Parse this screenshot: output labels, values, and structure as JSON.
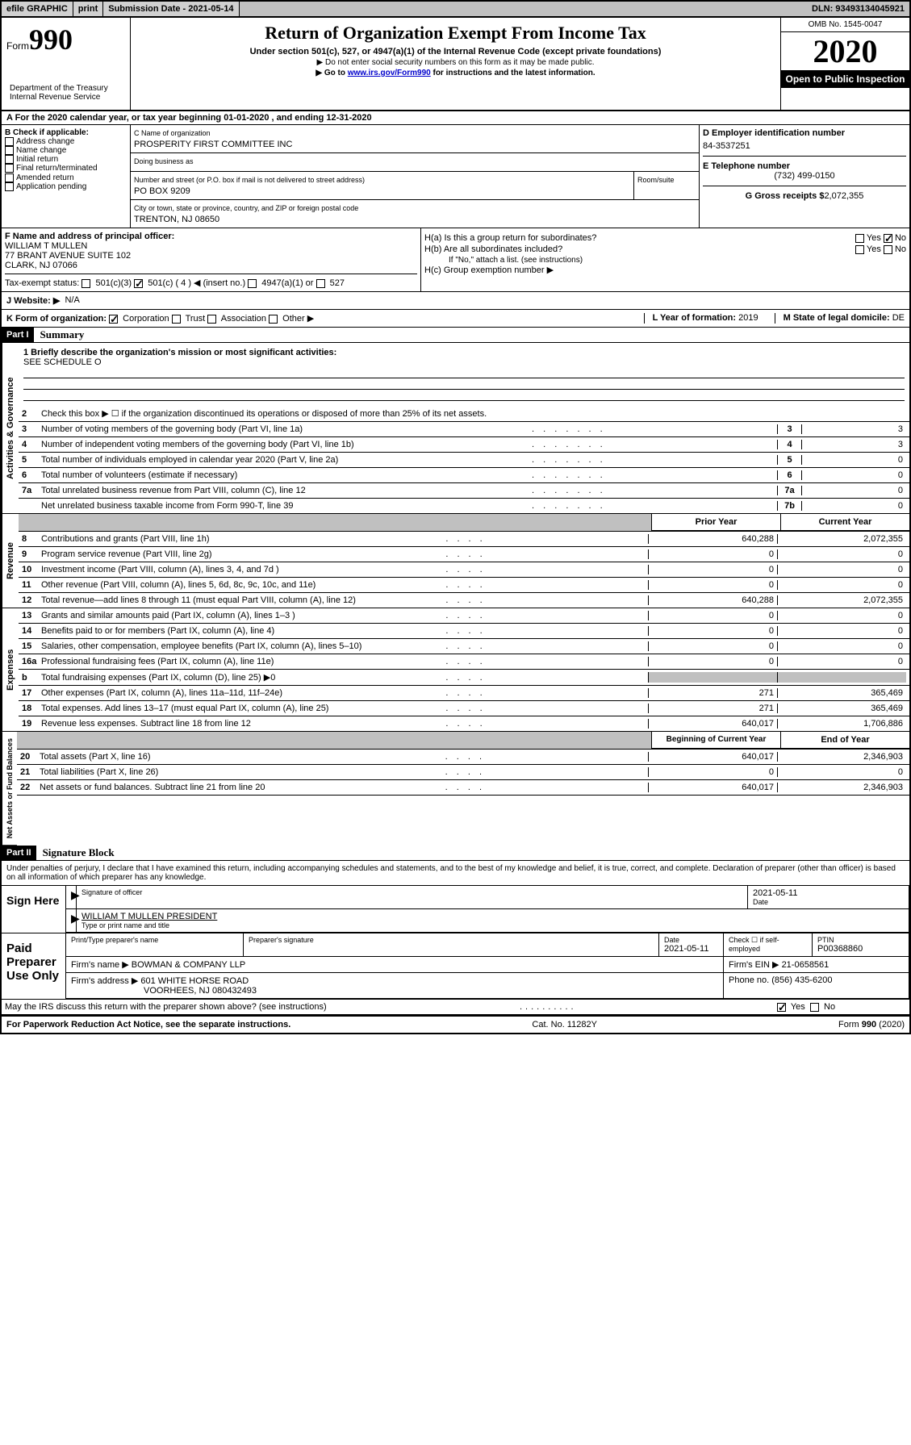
{
  "topbar": {
    "efile": "efile GRAPHIC",
    "print": "print",
    "subdate_label": "Submission Date - ",
    "subdate": "2021-05-14",
    "dln": "DLN: 93493134045921"
  },
  "header": {
    "form_prefix": "Form",
    "form_no": "990",
    "dept": "Department of the Treasury\nInternal Revenue Service",
    "title": "Return of Organization Exempt From Income Tax",
    "subtitle": "Under section 501(c), 527, or 4947(a)(1) of the Internal Revenue Code (except private foundations)",
    "note1": "▶ Do not enter social security numbers on this form as it may be made public.",
    "note2_pre": "▶ Go to ",
    "note2_link": "www.irs.gov/Form990",
    "note2_post": " for instructions and the latest information.",
    "omb": "OMB No. 1545-0047",
    "year": "2020",
    "inspection": "Open to Public Inspection"
  },
  "rowA": "A For the 2020 calendar year, or tax year beginning 01-01-2020   , and ending 12-31-2020",
  "boxB": {
    "label": "B Check if applicable:",
    "items": [
      "Address change",
      "Name change",
      "Initial return",
      "Final return/terminated",
      "Amended return",
      "Application pending"
    ]
  },
  "boxC": {
    "name_label": "C Name of organization",
    "name": "PROSPERITY FIRST COMMITTEE INC",
    "dba_label": "Doing business as",
    "dba": "",
    "street_label": "Number and street (or P.O. box if mail is not delivered to street address)",
    "room_label": "Room/suite",
    "street": "PO BOX 9209",
    "city_label": "City or town, state or province, country, and ZIP or foreign postal code",
    "city": "TRENTON, NJ  08650"
  },
  "boxD": {
    "label": "D Employer identification number",
    "val": "84-3537251"
  },
  "boxE": {
    "label": "E Telephone number",
    "val": "(732) 499-0150"
  },
  "boxG": {
    "label": "G Gross receipts $",
    "val": "2,072,355"
  },
  "boxF": {
    "label": "F  Name and address of principal officer:",
    "name": "WILLIAM T MULLEN",
    "addr1": "77 BRANT AVENUE SUITE 102",
    "addr2": "CLARK, NJ  07066"
  },
  "boxH": {
    "ha": "H(a)  Is this a group return for subordinates?",
    "hb": "H(b)  Are all subordinates included?",
    "hb_note": "If \"No,\" attach a list. (see instructions)",
    "hc": "H(c)  Group exemption number ▶",
    "yes": "Yes",
    "no": "No"
  },
  "rowI": {
    "label": "Tax-exempt status:",
    "opts": [
      "501(c)(3)",
      "501(c) ( 4 ) ◀ (insert no.)",
      "4947(a)(1) or",
      "527"
    ]
  },
  "rowJ": {
    "label": "J   Website: ▶",
    "val": "N/A"
  },
  "rowK": {
    "label": "K Form of organization:",
    "opts": [
      "Corporation",
      "Trust",
      "Association",
      "Other ▶"
    ]
  },
  "rowL": {
    "label": "L Year of formation:",
    "val": "2019"
  },
  "rowM": {
    "label": "M State of legal domicile:",
    "val": "DE"
  },
  "partI": {
    "header": "Part I",
    "title": "Summary"
  },
  "summary": {
    "q1": "1   Briefly describe the organization's mission or most significant activities:",
    "q1_val": "SEE SCHEDULE O",
    "q2": "Check this box ▶ ☐  if the organization discontinued its operations or disposed of more than 25% of its net assets.",
    "lines_gov": [
      {
        "n": "3",
        "t": "Number of voting members of the governing body (Part VI, line 1a)",
        "cell": "3",
        "v": "3"
      },
      {
        "n": "4",
        "t": "Number of independent voting members of the governing body (Part VI, line 1b)",
        "cell": "4",
        "v": "3"
      },
      {
        "n": "5",
        "t": "Total number of individuals employed in calendar year 2020 (Part V, line 2a)",
        "cell": "5",
        "v": "0"
      },
      {
        "n": "6",
        "t": "Total number of volunteers (estimate if necessary)",
        "cell": "6",
        "v": "0"
      },
      {
        "n": "7a",
        "t": "Total unrelated business revenue from Part VIII, column (C), line 12",
        "cell": "7a",
        "v": "0"
      },
      {
        "n": "",
        "t": "Net unrelated business taxable income from Form 990-T, line 39",
        "cell": "7b",
        "v": "0"
      }
    ],
    "col_headers": {
      "prior": "Prior Year",
      "current": "Current Year",
      "begin": "Beginning of Current Year",
      "end": "End of Year"
    },
    "lines_rev": [
      {
        "n": "8",
        "t": "Contributions and grants (Part VIII, line 1h)",
        "p": "640,288",
        "c": "2,072,355"
      },
      {
        "n": "9",
        "t": "Program service revenue (Part VIII, line 2g)",
        "p": "0",
        "c": "0"
      },
      {
        "n": "10",
        "t": "Investment income (Part VIII, column (A), lines 3, 4, and 7d )",
        "p": "0",
        "c": "0"
      },
      {
        "n": "11",
        "t": "Other revenue (Part VIII, column (A), lines 5, 6d, 8c, 9c, 10c, and 11e)",
        "p": "0",
        "c": "0"
      },
      {
        "n": "12",
        "t": "Total revenue—add lines 8 through 11 (must equal Part VIII, column (A), line 12)",
        "p": "640,288",
        "c": "2,072,355"
      }
    ],
    "lines_exp": [
      {
        "n": "13",
        "t": "Grants and similar amounts paid (Part IX, column (A), lines 1–3 )",
        "p": "0",
        "c": "0"
      },
      {
        "n": "14",
        "t": "Benefits paid to or for members (Part IX, column (A), line 4)",
        "p": "0",
        "c": "0"
      },
      {
        "n": "15",
        "t": "Salaries, other compensation, employee benefits (Part IX, column (A), lines 5–10)",
        "p": "0",
        "c": "0"
      },
      {
        "n": "16a",
        "t": "Professional fundraising fees (Part IX, column (A), line 11e)",
        "p": "0",
        "c": "0"
      },
      {
        "n": "b",
        "t": "Total fundraising expenses (Part IX, column (D), line 25) ▶0",
        "shaded": true
      },
      {
        "n": "17",
        "t": "Other expenses (Part IX, column (A), lines 11a–11d, 11f–24e)",
        "p": "271",
        "c": "365,469"
      },
      {
        "n": "18",
        "t": "Total expenses. Add lines 13–17 (must equal Part IX, column (A), line 25)",
        "p": "271",
        "c": "365,469"
      },
      {
        "n": "19",
        "t": "Revenue less expenses. Subtract line 18 from line 12",
        "p": "640,017",
        "c": "1,706,886"
      }
    ],
    "lines_net": [
      {
        "n": "20",
        "t": "Total assets (Part X, line 16)",
        "p": "640,017",
        "c": "2,346,903"
      },
      {
        "n": "21",
        "t": "Total liabilities (Part X, line 26)",
        "p": "0",
        "c": "0"
      },
      {
        "n": "22",
        "t": "Net assets or fund balances. Subtract line 21 from line 20",
        "p": "640,017",
        "c": "2,346,903"
      }
    ],
    "vert_labels": {
      "gov": "Activities & Governance",
      "rev": "Revenue",
      "exp": "Expenses",
      "net": "Net Assets or Fund Balances"
    }
  },
  "partII": {
    "header": "Part II",
    "title": "Signature Block"
  },
  "perjury": "Under penalties of perjury, I declare that I have examined this return, including accompanying schedules and statements, and to the best of my knowledge and belief, it is true, correct, and complete. Declaration of preparer (other than officer) is based on all information of which preparer has any knowledge.",
  "sign": {
    "label": "Sign Here",
    "sig_label": "Signature of officer",
    "date": "2021-05-11",
    "date_label": "Date",
    "name": "WILLIAM T MULLEN  PRESIDENT",
    "name_label": "Type or print name and title"
  },
  "preparer": {
    "label": "Paid Preparer Use Only",
    "name_label": "Print/Type preparer's name",
    "sig_label": "Preparer's signature",
    "date_label": "Date",
    "date": "2021-05-11",
    "check_label": "Check ☐ if self-employed",
    "ptin_label": "PTIN",
    "ptin": "P00368860",
    "firm_label": "Firm's name    ▶",
    "firm": "BOWMAN & COMPANY LLP",
    "ein_label": "Firm's EIN ▶",
    "ein": "21-0658561",
    "addr_label": "Firm's address ▶",
    "addr1": "601 WHITE HORSE ROAD",
    "addr2": "VOORHEES, NJ  080432493",
    "phone_label": "Phone no.",
    "phone": "(856) 435-6200"
  },
  "discuss": "May the IRS discuss this return with the preparer shown above? (see instructions)",
  "footer": {
    "left": "For Paperwork Reduction Act Notice, see the separate instructions.",
    "mid": "Cat. No. 11282Y",
    "right": "Form 990 (2020)"
  }
}
